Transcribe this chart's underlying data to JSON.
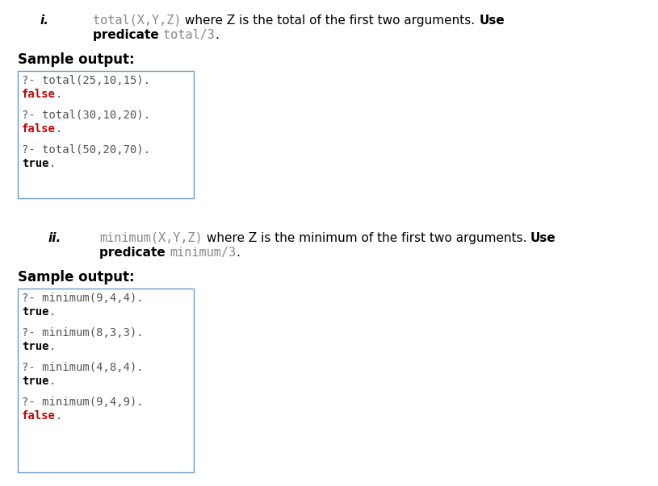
{
  "bg_color": "#ffffff",
  "box_border_color": "#6699cc",
  "box_bg_color": "#ffffff",
  "section_i_label": "i.",
  "section_i_line1": [
    {
      "text": "total(X,Y,Z)",
      "style": "code",
      "color": "#888888"
    },
    {
      "text": " where Z is the total of the first two arguments. ",
      "style": "normal",
      "color": "#000000"
    },
    {
      "text": "Use",
      "style": "bold",
      "color": "#000000"
    }
  ],
  "section_i_line2": [
    {
      "text": "predicate ",
      "style": "bold",
      "color": "#000000"
    },
    {
      "text": "total/3",
      "style": "code",
      "color": "#888888"
    },
    {
      "text": ".",
      "style": "normal",
      "color": "#000000"
    }
  ],
  "sample_output_1": "Sample output:",
  "box1_lines": [
    [
      {
        "text": "?- total(25,10,15).",
        "style": "code",
        "color": "#555555"
      }
    ],
    [
      {
        "text": "false",
        "style": "code_bold",
        "color": "#cc0000"
      },
      {
        "text": ".",
        "style": "code",
        "color": "#555555"
      }
    ],
    [],
    [
      {
        "text": "?- total(30,10,20).",
        "style": "code",
        "color": "#555555"
      }
    ],
    [
      {
        "text": "false",
        "style": "code_bold",
        "color": "#cc0000"
      },
      {
        "text": ".",
        "style": "code",
        "color": "#555555"
      }
    ],
    [],
    [
      {
        "text": "?- total(50,20,70).",
        "style": "code",
        "color": "#555555"
      }
    ],
    [
      {
        "text": "true",
        "style": "code_bold",
        "color": "#000000"
      },
      {
        "text": ".",
        "style": "code",
        "color": "#555555"
      }
    ]
  ],
  "section_ii_label": "ii.",
  "section_ii_line1": [
    {
      "text": "minimum(X,Y,Z)",
      "style": "code",
      "color": "#888888"
    },
    {
      "text": " where Z is the minimum of the first two arguments. ",
      "style": "normal",
      "color": "#000000"
    },
    {
      "text": "Use",
      "style": "bold",
      "color": "#000000"
    }
  ],
  "section_ii_line2": [
    {
      "text": "predicate ",
      "style": "bold",
      "color": "#000000"
    },
    {
      "text": "minimum/3",
      "style": "code",
      "color": "#888888"
    },
    {
      "text": ".",
      "style": "normal",
      "color": "#000000"
    }
  ],
  "sample_output_2": "Sample output:",
  "box2_lines": [
    [
      {
        "text": "?- minimum(9,4,4).",
        "style": "code",
        "color": "#555555"
      }
    ],
    [
      {
        "text": "true",
        "style": "code_bold",
        "color": "#000000"
      },
      {
        "text": ".",
        "style": "code",
        "color": "#555555"
      }
    ],
    [],
    [
      {
        "text": "?- minimum(8,3,3).",
        "style": "code",
        "color": "#555555"
      }
    ],
    [
      {
        "text": "true",
        "style": "code_bold",
        "color": "#000000"
      },
      {
        "text": ".",
        "style": "code",
        "color": "#555555"
      }
    ],
    [],
    [
      {
        "text": "?- minimum(4,8,4).",
        "style": "code",
        "color": "#555555"
      }
    ],
    [
      {
        "text": "true",
        "style": "code_bold",
        "color": "#000000"
      },
      {
        "text": ".",
        "style": "code",
        "color": "#555555"
      }
    ],
    [],
    [
      {
        "text": "?- minimum(9,4,9).",
        "style": "code",
        "color": "#555555"
      }
    ],
    [
      {
        "text": "false",
        "style": "code_bold",
        "color": "#cc0000"
      },
      {
        "text": ".",
        "style": "code",
        "color": "#555555"
      }
    ]
  ]
}
